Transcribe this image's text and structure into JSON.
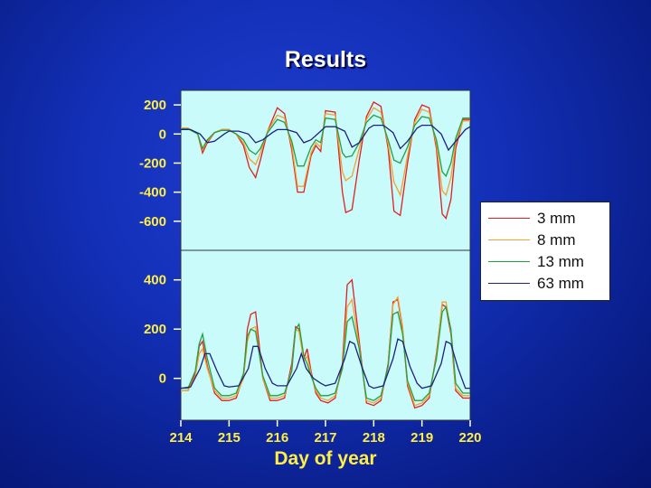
{
  "title": "Results",
  "colors": {
    "background": "#1330b8",
    "plot_background": "#c9fbfb",
    "tick_label": "#ffee44"
  },
  "chart_data": [
    {
      "type": "line",
      "panel": "top",
      "xlim": [
        214,
        220
      ],
      "ylim": [
        -800,
        300
      ],
      "yticks": [
        200,
        0,
        -200,
        -400,
        -600
      ],
      "ylabel": "",
      "grid": false,
      "series": [
        {
          "name": "3 mm",
          "color": "#e02020",
          "x": [
            214.0,
            214.15,
            214.35,
            214.45,
            214.55,
            214.7,
            214.85,
            215.0,
            215.15,
            215.3,
            215.42,
            215.55,
            215.65,
            215.8,
            216.0,
            216.15,
            216.3,
            216.42,
            216.55,
            216.7,
            216.8,
            216.9,
            217.0,
            217.2,
            217.35,
            217.42,
            217.55,
            217.7,
            217.85,
            218.0,
            218.15,
            218.3,
            218.42,
            218.55,
            218.7,
            218.85,
            219.0,
            219.15,
            219.3,
            219.42,
            219.5,
            219.6,
            219.7,
            219.85,
            220.0
          ],
          "y": [
            40,
            40,
            0,
            -130,
            -60,
            10,
            30,
            30,
            0,
            -80,
            -230,
            -300,
            -180,
            20,
            180,
            140,
            -110,
            -400,
            -400,
            -150,
            -80,
            -120,
            160,
            150,
            -400,
            -540,
            -520,
            -180,
            120,
            220,
            190,
            -100,
            -530,
            -560,
            -200,
            100,
            200,
            180,
            -100,
            -550,
            -580,
            -450,
            -100,
            100,
            100
          ]
        },
        {
          "name": "8 mm",
          "color": "#f5a030",
          "x": [
            214.0,
            214.15,
            214.35,
            214.45,
            214.55,
            214.7,
            214.85,
            215.0,
            215.15,
            215.3,
            215.42,
            215.55,
            215.65,
            215.8,
            216.0,
            216.15,
            216.3,
            216.42,
            216.55,
            216.7,
            216.8,
            216.9,
            217.0,
            217.2,
            217.35,
            217.42,
            217.55,
            217.7,
            217.85,
            218.0,
            218.15,
            218.3,
            218.42,
            218.55,
            218.7,
            218.85,
            219.0,
            219.15,
            219.3,
            219.42,
            219.5,
            219.6,
            219.7,
            219.85,
            220.0
          ],
          "y": [
            40,
            40,
            0,
            -110,
            -50,
            10,
            30,
            30,
            0,
            -60,
            -170,
            -210,
            -130,
            20,
            130,
            110,
            -80,
            -360,
            -360,
            -130,
            -60,
            -90,
            140,
            130,
            -260,
            -320,
            -290,
            -100,
            100,
            180,
            150,
            -70,
            -330,
            -420,
            -150,
            80,
            170,
            150,
            -70,
            -390,
            -420,
            -300,
            -60,
            90,
            90
          ]
        },
        {
          "name": "13 mm",
          "color": "#22a040",
          "x": [
            214.0,
            214.15,
            214.35,
            214.45,
            214.55,
            214.7,
            214.85,
            215.0,
            215.15,
            215.3,
            215.42,
            215.55,
            215.65,
            215.8,
            216.0,
            216.15,
            216.3,
            216.42,
            216.55,
            216.7,
            216.8,
            216.9,
            217.0,
            217.2,
            217.35,
            217.42,
            217.55,
            217.7,
            217.85,
            218.0,
            218.15,
            218.3,
            218.42,
            218.55,
            218.7,
            218.85,
            219.0,
            219.15,
            219.3,
            219.42,
            219.5,
            219.6,
            219.7,
            219.85,
            220.0
          ],
          "y": [
            35,
            35,
            0,
            -100,
            -40,
            10,
            25,
            25,
            0,
            -40,
            -110,
            -140,
            -100,
            10,
            100,
            80,
            -50,
            -220,
            -220,
            -90,
            -40,
            -60,
            110,
            100,
            -130,
            -160,
            -150,
            -60,
            80,
            130,
            110,
            -40,
            -180,
            -200,
            -90,
            60,
            120,
            110,
            -40,
            -260,
            -290,
            -200,
            -30,
            110,
            110
          ]
        },
        {
          "name": "63 mm",
          "color": "#202080",
          "x": [
            214.0,
            214.2,
            214.4,
            214.55,
            214.7,
            214.9,
            215.0,
            215.2,
            215.4,
            215.55,
            215.7,
            215.9,
            216.0,
            216.2,
            216.4,
            216.55,
            216.7,
            216.9,
            217.0,
            217.2,
            217.4,
            217.55,
            217.7,
            217.9,
            218.0,
            218.2,
            218.4,
            218.55,
            218.7,
            218.9,
            219.0,
            219.2,
            219.4,
            219.55,
            219.7,
            219.9,
            220.0
          ],
          "y": [
            30,
            30,
            0,
            -60,
            -50,
            0,
            20,
            20,
            0,
            -60,
            -40,
            10,
            30,
            30,
            10,
            -60,
            -40,
            20,
            50,
            50,
            20,
            -90,
            -60,
            40,
            60,
            60,
            10,
            -100,
            -50,
            40,
            60,
            60,
            0,
            -110,
            -50,
            30,
            50
          ]
        }
      ]
    },
    {
      "type": "line",
      "panel": "bottom",
      "xlim": [
        214,
        220
      ],
      "ylim": [
        -170,
        520
      ],
      "yticks": [
        400,
        200,
        0
      ],
      "ylabel": "",
      "grid": false,
      "series": [
        {
          "name": "3 mm",
          "color": "#e02020",
          "x": [
            214.0,
            214.15,
            214.3,
            214.38,
            214.45,
            214.55,
            214.7,
            214.85,
            215.0,
            215.15,
            215.3,
            215.38,
            215.45,
            215.55,
            215.7,
            215.85,
            216.0,
            216.15,
            216.3,
            216.38,
            216.45,
            216.55,
            216.62,
            216.7,
            216.8,
            216.9,
            217.05,
            217.2,
            217.35,
            217.45,
            217.55,
            217.7,
            217.85,
            218.0,
            218.15,
            218.3,
            218.4,
            218.5,
            218.6,
            218.7,
            218.85,
            219.0,
            219.15,
            219.3,
            219.42,
            219.5,
            219.6,
            219.7,
            219.85,
            220.0
          ],
          "y": [
            -50,
            -50,
            20,
            130,
            150,
            50,
            -60,
            -90,
            -90,
            -80,
            10,
            200,
            260,
            270,
            0,
            -90,
            -90,
            -80,
            60,
            210,
            200,
            80,
            120,
            30,
            -60,
            -90,
            -100,
            -80,
            60,
            380,
            400,
            150,
            -100,
            -110,
            -90,
            60,
            310,
            320,
            200,
            -30,
            -120,
            -110,
            -80,
            100,
            300,
            290,
            180,
            -50,
            -80,
            -80
          ]
        },
        {
          "name": "8 mm",
          "color": "#f5a030",
          "x": [
            214.0,
            214.15,
            214.3,
            214.38,
            214.45,
            214.55,
            214.7,
            214.85,
            215.0,
            215.15,
            215.3,
            215.38,
            215.45,
            215.55,
            215.7,
            215.85,
            216.0,
            216.15,
            216.3,
            216.38,
            216.45,
            216.55,
            216.62,
            216.7,
            216.8,
            216.9,
            217.05,
            217.2,
            217.35,
            217.45,
            217.55,
            217.7,
            217.85,
            218.0,
            218.15,
            218.3,
            218.4,
            218.5,
            218.6,
            218.7,
            218.85,
            219.0,
            219.15,
            219.3,
            219.42,
            219.5,
            219.6,
            219.7,
            219.85,
            220.0
          ],
          "y": [
            -50,
            -50,
            10,
            100,
            120,
            40,
            -50,
            -80,
            -80,
            -70,
            0,
            150,
            200,
            210,
            0,
            -80,
            -80,
            -70,
            40,
            200,
            190,
            70,
            90,
            20,
            -50,
            -80,
            -90,
            -70,
            40,
            290,
            320,
            130,
            -90,
            -100,
            -80,
            50,
            300,
            330,
            210,
            -20,
            -110,
            -100,
            -70,
            90,
            310,
            310,
            190,
            -40,
            -70,
            -70
          ]
        },
        {
          "name": "13 mm",
          "color": "#22a040",
          "x": [
            214.0,
            214.15,
            214.3,
            214.38,
            214.45,
            214.55,
            214.7,
            214.85,
            215.0,
            215.15,
            215.3,
            215.38,
            215.45,
            215.55,
            215.7,
            215.85,
            216.0,
            216.15,
            216.3,
            216.38,
            216.45,
            216.55,
            216.62,
            216.7,
            216.8,
            216.9,
            217.05,
            217.2,
            217.35,
            217.45,
            217.55,
            217.7,
            217.85,
            218.0,
            218.15,
            218.3,
            218.4,
            218.5,
            218.6,
            218.7,
            218.85,
            219.0,
            219.15,
            219.3,
            219.42,
            219.5,
            219.6,
            219.7,
            219.85,
            220.0
          ],
          "y": [
            -40,
            -40,
            30,
            140,
            180,
            80,
            -40,
            -70,
            -70,
            -60,
            20,
            170,
            200,
            190,
            10,
            -70,
            -70,
            -60,
            30,
            200,
            220,
            90,
            60,
            10,
            -40,
            -70,
            -70,
            -60,
            40,
            230,
            250,
            120,
            -80,
            -90,
            -70,
            50,
            260,
            270,
            180,
            -10,
            -90,
            -90,
            -60,
            80,
            270,
            290,
            200,
            -20,
            -60,
            -60
          ]
        },
        {
          "name": "63 mm",
          "color": "#202080",
          "x": [
            214.0,
            214.2,
            214.4,
            214.5,
            214.6,
            214.75,
            214.9,
            215.0,
            215.2,
            215.4,
            215.5,
            215.6,
            215.75,
            215.9,
            216.0,
            216.2,
            216.4,
            216.5,
            216.6,
            216.75,
            216.9,
            217.0,
            217.2,
            217.4,
            217.5,
            217.6,
            217.75,
            217.9,
            218.0,
            218.2,
            218.4,
            218.5,
            218.6,
            218.75,
            218.9,
            219.0,
            219.2,
            219.4,
            219.5,
            219.6,
            219.75,
            219.9,
            220.0
          ],
          "y": [
            -40,
            -35,
            40,
            100,
            100,
            30,
            -30,
            -35,
            -30,
            40,
            130,
            130,
            40,
            -20,
            -30,
            -30,
            40,
            100,
            40,
            0,
            -20,
            -30,
            -20,
            80,
            150,
            140,
            50,
            -30,
            -40,
            -30,
            80,
            160,
            150,
            50,
            -20,
            -40,
            -30,
            60,
            150,
            140,
            40,
            -40,
            -40
          ]
        }
      ]
    }
  ],
  "xticks": [
    214,
    215,
    216,
    217,
    218,
    219,
    220
  ],
  "xlabel": "Day of year",
  "legend": [
    {
      "name": "3 mm",
      "color": "#e02020"
    },
    {
      "name": "8 mm",
      "color": "#f5a030"
    },
    {
      "name": "13 mm",
      "color": "#22a040"
    },
    {
      "name": "63 mm",
      "color": "#202080"
    }
  ]
}
